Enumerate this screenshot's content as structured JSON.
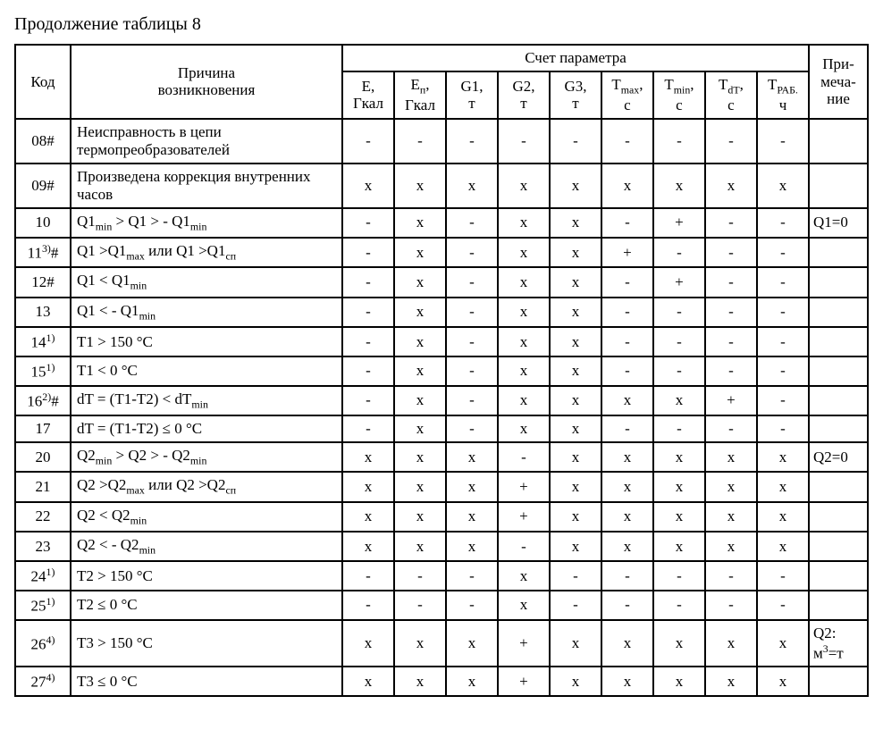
{
  "caption": "Продолжение таблицы 8",
  "headers": {
    "code": "Код",
    "cause": "Причина\nвозникновения",
    "group": "Счет параметра",
    "note": "При-\nмеча-\nние",
    "params": [
      {
        "l1": "E,",
        "l2": "Гкал"
      },
      {
        "l1": "E<sub>п</sub>,",
        "l2": "Гкал"
      },
      {
        "l1": "G1,",
        "l2": "т"
      },
      {
        "l1": "G2,",
        "l2": "т"
      },
      {
        "l1": "G3,",
        "l2": "т"
      },
      {
        "l1": "T<sub>max</sub>,",
        "l2": "с"
      },
      {
        "l1": "T<sub>min</sub>,",
        "l2": "с"
      },
      {
        "l1": "T<sub>dT</sub>,",
        "l2": "с"
      },
      {
        "l1": "T<sub>РАБ.</sub>",
        "l2": "ч"
      }
    ]
  },
  "rows": [
    {
      "code": "08#",
      "cause": "Неисправность в цепи термопреобразователей",
      "p": [
        "-",
        "-",
        "-",
        "-",
        "-",
        "-",
        "-",
        "-",
        "-"
      ],
      "note": ""
    },
    {
      "code": "09#",
      "cause": "Произведена коррекция внутренних часов",
      "p": [
        "x",
        "x",
        "x",
        "x",
        "x",
        "x",
        "x",
        "x",
        "x"
      ],
      "note": ""
    },
    {
      "code": "10",
      "cause": "Q1<sub>min</sub> > Q1 > - Q1<sub>min</sub>",
      "p": [
        "-",
        "x",
        "-",
        "x",
        "x",
        "-",
        "+",
        "-",
        "-"
      ],
      "note": "Q1=0"
    },
    {
      "code": "11<sup>3)</sup>#",
      "cause": "Q1 >Q1<sub>max</sub> или Q1 >Q1<sub>сп</sub>",
      "p": [
        "-",
        "x",
        "-",
        "x",
        "x",
        "+",
        "-",
        "-",
        "-"
      ],
      "note": ""
    },
    {
      "code": "12#",
      "cause": "Q1 < Q1<sub>min</sub>",
      "p": [
        "-",
        "x",
        "-",
        "x",
        "x",
        "-",
        "+",
        "-",
        "-"
      ],
      "note": ""
    },
    {
      "code": "13",
      "cause": "Q1 < - Q1<sub>min</sub>",
      "p": [
        "-",
        "x",
        "-",
        "x",
        "x",
        "-",
        "-",
        "-",
        "-"
      ],
      "note": ""
    },
    {
      "code": "14<sup>1)</sup>",
      "cause": "T1 > 150 °C",
      "p": [
        "-",
        "x",
        "-",
        "x",
        "x",
        "-",
        "-",
        "-",
        "-"
      ],
      "note": ""
    },
    {
      "code": "15<sup>1)</sup>",
      "cause": "T1 < 0 °C",
      "p": [
        "-",
        "x",
        "-",
        "x",
        "x",
        "-",
        "-",
        "-",
        "-"
      ],
      "note": ""
    },
    {
      "code": "16<sup>2)</sup>#",
      "cause": "dT = (T1-T2) < dT<sub>min</sub>",
      "p": [
        "-",
        "x",
        "-",
        "x",
        "x",
        "x",
        "x",
        "+",
        "-"
      ],
      "note": ""
    },
    {
      "code": "17",
      "cause": "dT = (T1-T2) ≤ 0 °C",
      "p": [
        "-",
        "x",
        "-",
        "x",
        "x",
        "-",
        "-",
        "-",
        "-"
      ],
      "note": ""
    },
    {
      "code": "20",
      "cause": "Q2<sub>min</sub> > Q2 > - Q2<sub>min</sub>",
      "p": [
        "x",
        "x",
        "x",
        "-",
        "x",
        "x",
        "x",
        "x",
        "x"
      ],
      "note": "Q2=0"
    },
    {
      "code": "21",
      "cause": "Q2 >Q2<sub>max</sub> или Q2 >Q2<sub>сп</sub>",
      "p": [
        "x",
        "x",
        "x",
        "+",
        "x",
        "x",
        "x",
        "x",
        "x"
      ],
      "note": ""
    },
    {
      "code": "22",
      "cause": "Q2 < Q2<sub>min</sub>",
      "p": [
        "x",
        "x",
        "x",
        "+",
        "x",
        "x",
        "x",
        "x",
        "x"
      ],
      "note": ""
    },
    {
      "code": "23",
      "cause": "Q2 < - Q2<sub>min</sub>",
      "p": [
        "x",
        "x",
        "x",
        "-",
        "x",
        "x",
        "x",
        "x",
        "x"
      ],
      "note": ""
    },
    {
      "code": "24<sup>1)</sup>",
      "cause": "T2 > 150 °C",
      "p": [
        "-",
        "-",
        "-",
        "x",
        "-",
        "-",
        "-",
        "-",
        "-"
      ],
      "note": ""
    },
    {
      "code": "25<sup>1)</sup>",
      "cause": "T2 ≤ 0 °C",
      "p": [
        "-",
        "-",
        "-",
        "x",
        "-",
        "-",
        "-",
        "-",
        "-"
      ],
      "note": ""
    },
    {
      "code": "26<sup>4)</sup>",
      "cause": "T3 > 150 °C",
      "p": [
        "x",
        "x",
        "x",
        "+",
        "x",
        "x",
        "x",
        "x",
        "x"
      ],
      "note": "Q2:\nм<sup>3</sup>=т"
    },
    {
      "code": "27<sup>4)</sup>",
      "cause": "T3 ≤ 0 °C",
      "p": [
        "x",
        "x",
        "x",
        "+",
        "x",
        "x",
        "x",
        "x",
        "x"
      ],
      "note": ""
    }
  ],
  "style": {
    "border_color": "#000000",
    "background_color": "#ffffff",
    "text_color": "#000000",
    "font_family": "Times New Roman",
    "caption_fontsize": 20,
    "cell_fontsize": 17,
    "border_width": 2
  }
}
